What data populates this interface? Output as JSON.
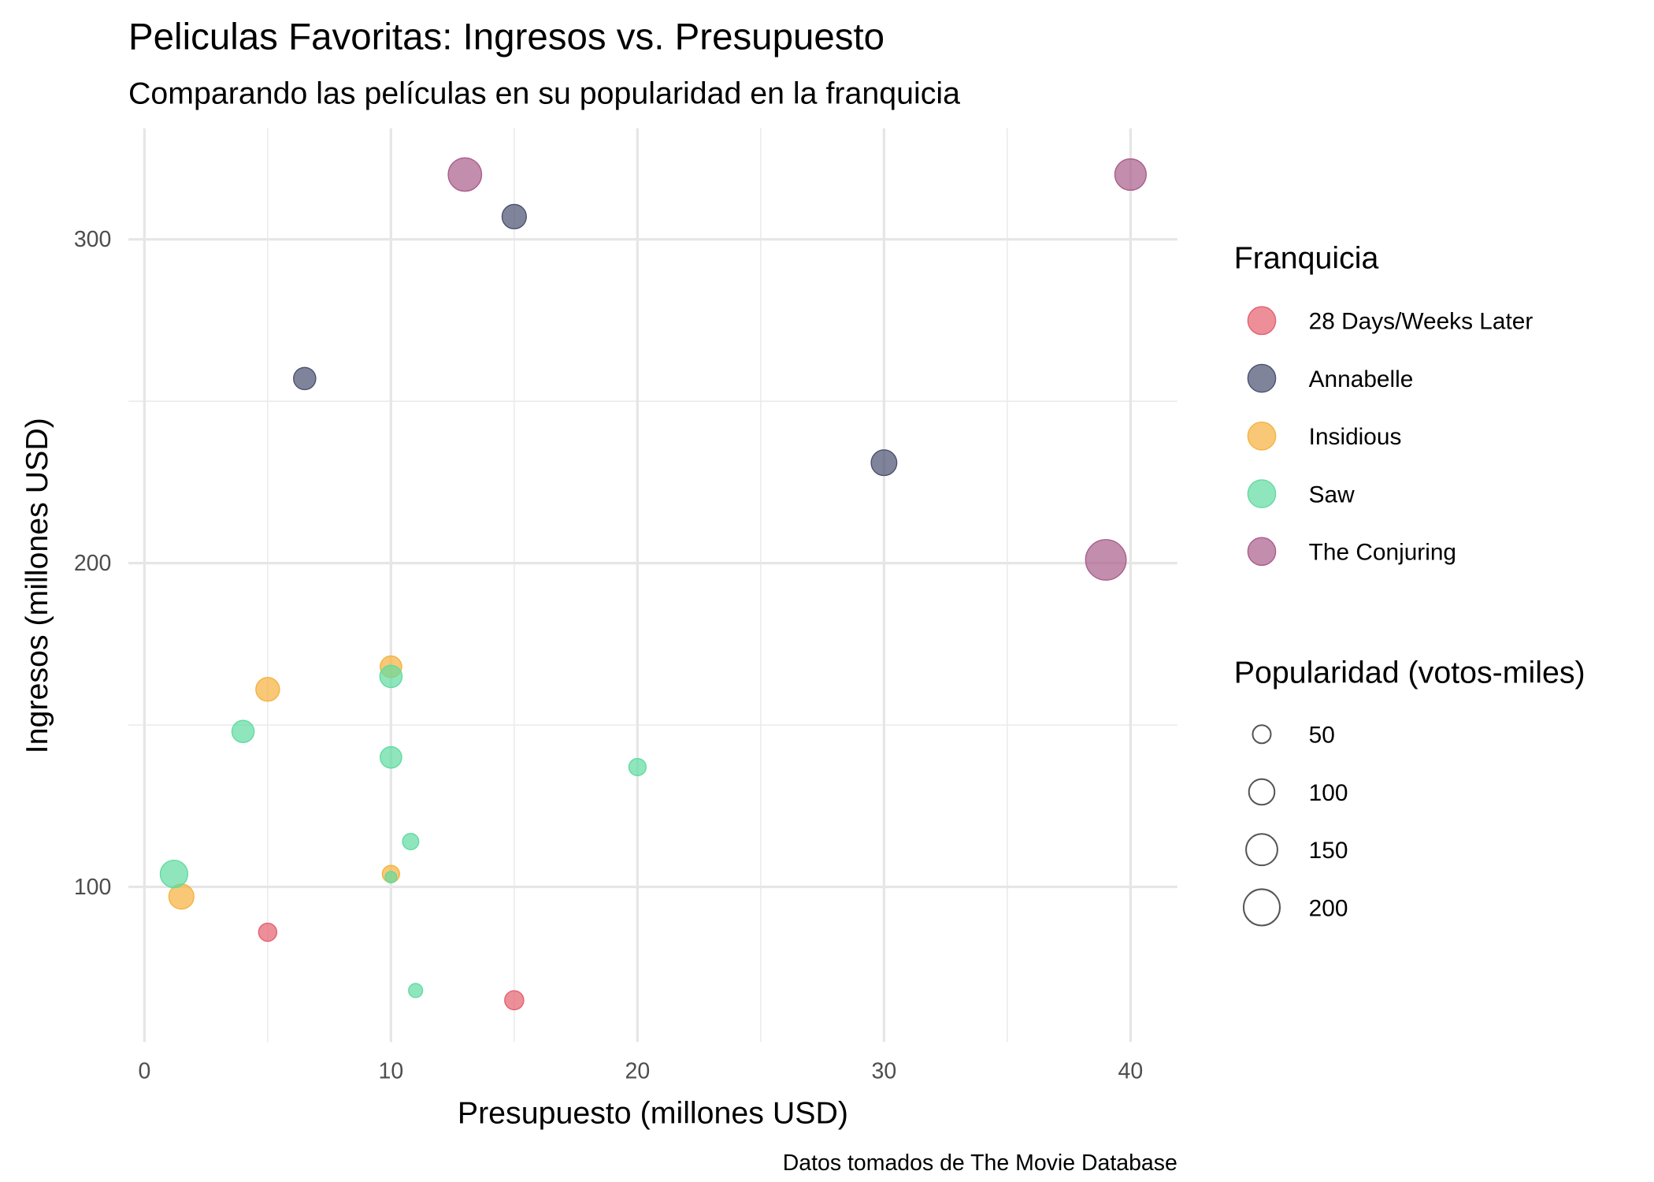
{
  "chart_data": {
    "type": "scatter",
    "title": "Peliculas Favoritas: Ingresos vs. Presupuesto",
    "subtitle": "Comparando las películas en su popularidad en la franquicia",
    "x_label": "Presupuesto (millones USD)",
    "y_label": "Ingresos (millones USD)",
    "caption": "Datos tomados de The Movie Database",
    "legend_title": "Franquicia",
    "size_legend_title": "Popularidad (votos-miles)",
    "size_legend": [
      50,
      100,
      150,
      200
    ],
    "xlim": [
      -0.65,
      41.9
    ],
    "ylim": [
      52.1,
      334.3
    ],
    "xticks": [
      0,
      10,
      20,
      30,
      40
    ],
    "yticks": [
      100,
      200,
      300
    ],
    "xminor": [
      5,
      15,
      25,
      35
    ],
    "yminor": [
      150,
      250
    ],
    "grid": true,
    "legend_position": "right",
    "series": [
      {
        "name": "28 Days/Weeks Later",
        "color": "#e4606d",
        "x": [
          5,
          15
        ],
        "values": [
          86,
          65
        ],
        "sizes": [
          50,
          55
        ]
      },
      {
        "name": "Annabelle",
        "color": "#4a5070",
        "x": [
          6.5,
          15,
          30
        ],
        "values": [
          257,
          307,
          231
        ],
        "sizes": [
          75,
          90,
          100
        ]
      },
      {
        "name": "Insidious",
        "color": "#f5b13d",
        "x": [
          5,
          10,
          10,
          1.5
        ],
        "values": [
          161,
          168,
          104,
          97
        ],
        "sizes": [
          85,
          70,
          45,
          95
        ]
      },
      {
        "name": "Saw",
        "color": "#5fdba0",
        "x": [
          1.2,
          4,
          10,
          10,
          20,
          10.8,
          10,
          11
        ],
        "values": [
          104,
          148,
          165,
          140,
          137,
          114,
          103,
          68
        ],
        "sizes": [
          115,
          75,
          75,
          70,
          45,
          40,
          20,
          30
        ]
      },
      {
        "name": "The Conjuring",
        "color": "#a95c8a",
        "x": [
          13,
          40,
          39
        ],
        "values": [
          320,
          320,
          201
        ],
        "sizes": [
          170,
          150,
          250
        ]
      }
    ]
  }
}
